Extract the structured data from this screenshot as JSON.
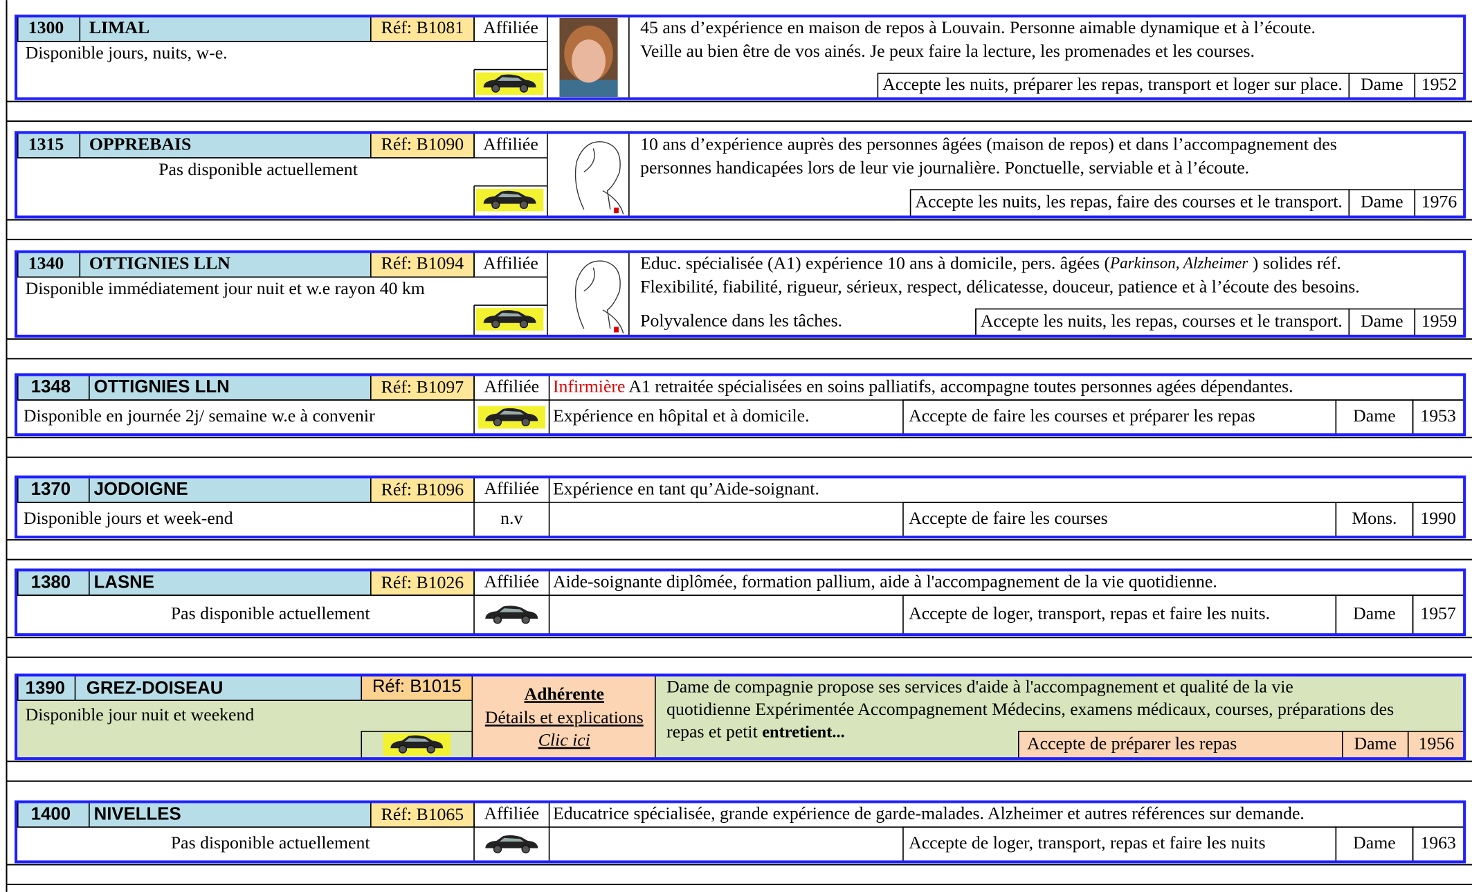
{
  "listings": [
    {
      "code": "1300",
      "city": "LIMAL",
      "ref": "Réf: B1081",
      "status": "Affiliée",
      "availability": "Disponible jours, nuits, w-e.",
      "vehicle_color": "#f2f230",
      "description": [
        [
          {
            "text": "45 ans d’expérience en maison de repos à Louvain. Personne aimable dynamique et à l’écoute."
          }
        ],
        [
          {
            "text": "Veille au bien être de vos ainés. Je peux faire la lecture, les promenades et les courses."
          }
        ]
      ],
      "accepts": "Accepte les nuits, préparer les repas, transport et loger sur place.",
      "gender": "Dame",
      "year": "1952"
    },
    {
      "code": "1315",
      "city": "OPPREBAIS",
      "ref": "Réf: B1090",
      "status": "Affiliée",
      "availability": "Pas disponible actuellement",
      "availability_color": "#e00000",
      "vehicle_color": "#f2f230",
      "description": [
        [
          {
            "text": "10 ans d’expérience auprès des personnes âgées (maison de repos) et dans l’accompagnement des"
          }
        ],
        [
          {
            "text": "personnes handicapées lors de leur vie journalière. Ponctuelle, serviable et à l’écoute."
          }
        ]
      ],
      "accepts": "Accepte les nuits, les repas, faire des courses et le transport.",
      "gender": "Dame",
      "year": "1976"
    },
    {
      "code": "1340",
      "city": "OTTIGNIES  LLN",
      "ref": "Réf: B1094",
      "status": "Affiliée",
      "availability": "Disponible immédiatement jour nuit et w.e rayon 40 km",
      "vehicle_color": "#f2f230",
      "description": [
        [
          {
            "text": "Educ. spécialisée (A1) expérience 10 ans à domicile, pers. âgées ("
          },
          {
            "text": "Parkinson, Alzheimer",
            "style": "italic"
          },
          {
            "text": " ) solides réf."
          }
        ],
        [
          {
            "text": "Flexibilité, fiabilité, rigueur, sérieux, respect, délicatesse, douceur, patience et à l’écoute des besoins."
          }
        ],
        [
          {
            "text": "Polyvalence dans les tâches."
          }
        ]
      ],
      "accepts": "Accepte les nuits, les repas, courses et le transport.",
      "gender": "Dame",
      "year": "1959"
    },
    {
      "code": "1348",
      "city": "OTTIGNIES LLN",
      "ref": "Réf: B1097",
      "status": "Affiliée",
      "availability": "Disponible en journée 2j/ semaine w.e à convenir",
      "vehicle_color": "#f2f230",
      "description": [
        [
          {
            "text": "Infirmière",
            "color": "#e00000"
          },
          {
            "text": " A1 retraitée spécialisées en soins palliatifs, accompagne toutes personnes agées dépendantes."
          }
        ],
        [
          {
            "text": "Expérience en hôpital et à domicile."
          }
        ]
      ],
      "accepts": "Accepte de faire les courses et préparer les repas",
      "gender": "Dame",
      "year": "1953"
    },
    {
      "code": "1370",
      "city": "JODOIGNE",
      "ref": "Réf: B1096",
      "status": "Affiliée",
      "availability": "Disponible jours et week-end",
      "vehicle": "n.v",
      "description": [
        [
          {
            "text": "Expérience en tant qu’Aide-soignant."
          }
        ]
      ],
      "accepts": "Accepte de faire les courses",
      "gender": "Mons.",
      "year": "1990"
    },
    {
      "code": "1380",
      "city": "LASNE",
      "ref": "Réf: B1026",
      "status": "Affiliée",
      "availability": "Pas disponible actuellement",
      "availability_color": "#e00000",
      "description": [
        [
          {
            "text": "Aide-soignante diplômée, formation pallium, aide à l'accompagnement de la vie quotidienne."
          }
        ]
      ],
      "accepts": "Accepte de loger, transport, repas et faire les nuits.",
      "gender": "Dame",
      "year": "1957"
    },
    {
      "code": "1390",
      "city": "GREZ-DOISEAU",
      "ref": "Réf: B1015",
      "status": "Adhérente",
      "details_link": "Détails et explications",
      "click_link": "Clic ici",
      "availability": "Disponible jour nuit et weekend",
      "vehicle_color": "#f2f230",
      "description": [
        [
          {
            "text": "Dame de compagnie propose ses services d'aide à l'accompagnement et qualité de la vie"
          }
        ],
        [
          {
            "text": "quotidienne    Expérimentée  Accompagnement Médecins, examens médicaux, courses, préparations des"
          }
        ],
        [
          {
            "text": "repas et petit "
          },
          {
            "text": "entretient...",
            "style": "bold"
          }
        ]
      ],
      "accepts": "Accepte de préparer les repas",
      "gender": "Dame",
      "year": "1956"
    },
    {
      "code": "1400",
      "city": "NIVELLES",
      "ref": "Réf: B1065",
      "status": "Affiliée",
      "availability": "Pas disponible actuellement",
      "availability_color": "#e00000",
      "description": [
        [
          {
            "text": "Educatrice spécialisée, grande expérience de garde-malades. Alzheimer et autres références sur demande."
          }
        ]
      ],
      "accepts": "Accepte de loger, transport, repas et faire les nuits",
      "gender": "Dame",
      "year": "1963"
    }
  ]
}
